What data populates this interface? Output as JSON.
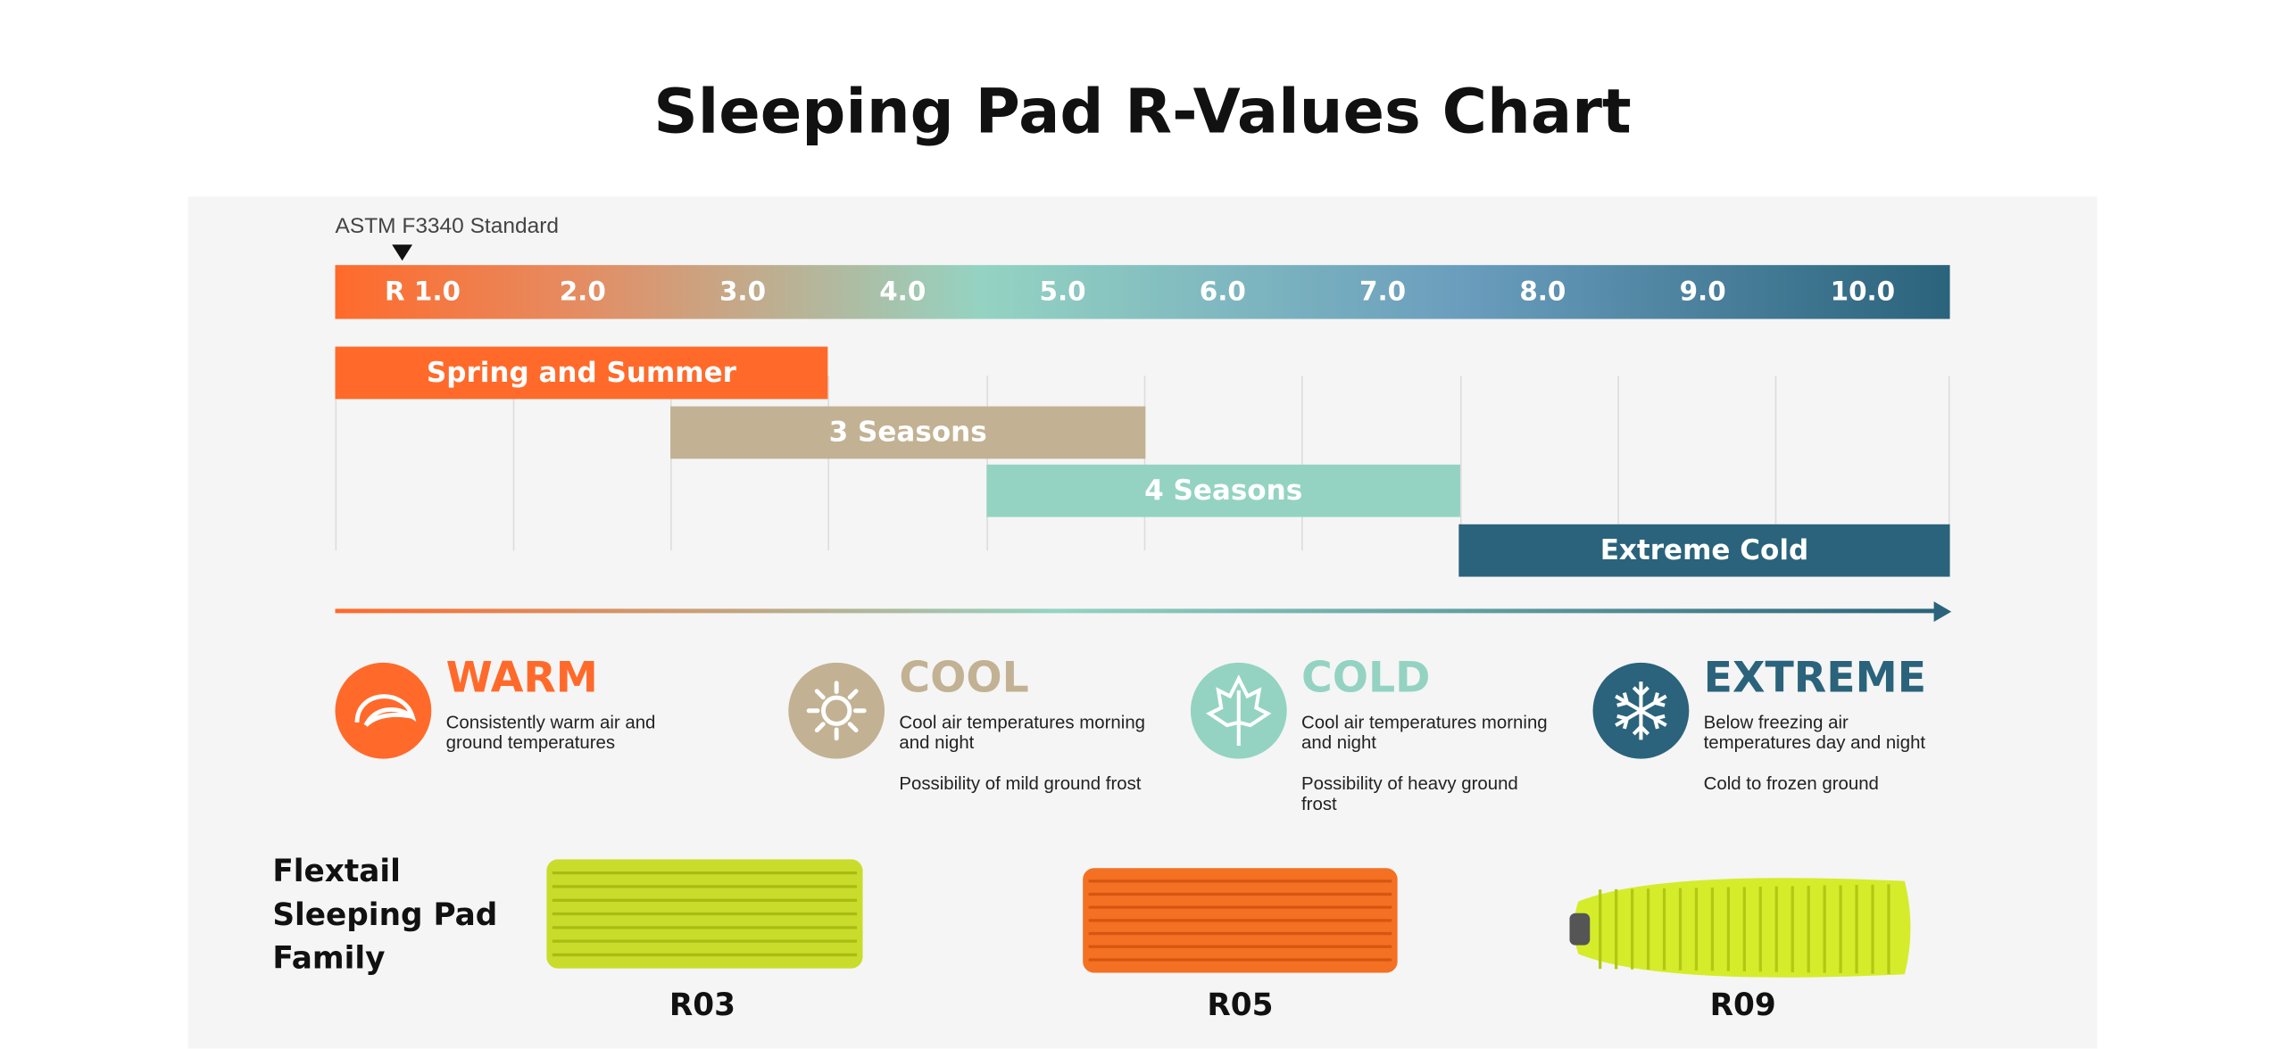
{
  "title": "Sleeping Pad R-Values Chart",
  "standard_label": "ASTM F3340 Standard",
  "scale_labels": [
    "R 1.0",
    "2.0",
    "3.0",
    "4.0",
    "5.0",
    "6.0",
    "7.0",
    "8.0",
    "9.0",
    "10.0"
  ],
  "ranges": [
    {
      "label": "Spring and Summer",
      "color": "#ff6a2b"
    },
    {
      "label": "3 Seasons",
      "color": "#c2b293"
    },
    {
      "label": "4 Seasons",
      "color": "#94d3c2"
    },
    {
      "label": "Extreme Cold",
      "color": "#2a637b"
    }
  ],
  "conditions": [
    {
      "title": "WARM",
      "color": "#ff6a2b",
      "paragraphs": [
        "Consistently warm air and ground temperatures"
      ]
    },
    {
      "title": "COOL",
      "color": "#c2b293",
      "paragraphs": [
        "Cool air temperatures morning and night",
        "Possibility of mild ground frost"
      ]
    },
    {
      "title": "COLD",
      "color": "#94d3c2",
      "paragraphs": [
        "Cool air temperatures morning and night",
        "Possibility of heavy ground frost"
      ]
    },
    {
      "title": "EXTREME",
      "color": "#2a637b",
      "paragraphs": [
        "Below freezing air temperatures day and night",
        "Cold to frozen ground"
      ]
    }
  ],
  "family": {
    "label": "Flextail Sleeping Pad Family",
    "products": [
      "R03",
      "R05",
      "R09"
    ]
  }
}
